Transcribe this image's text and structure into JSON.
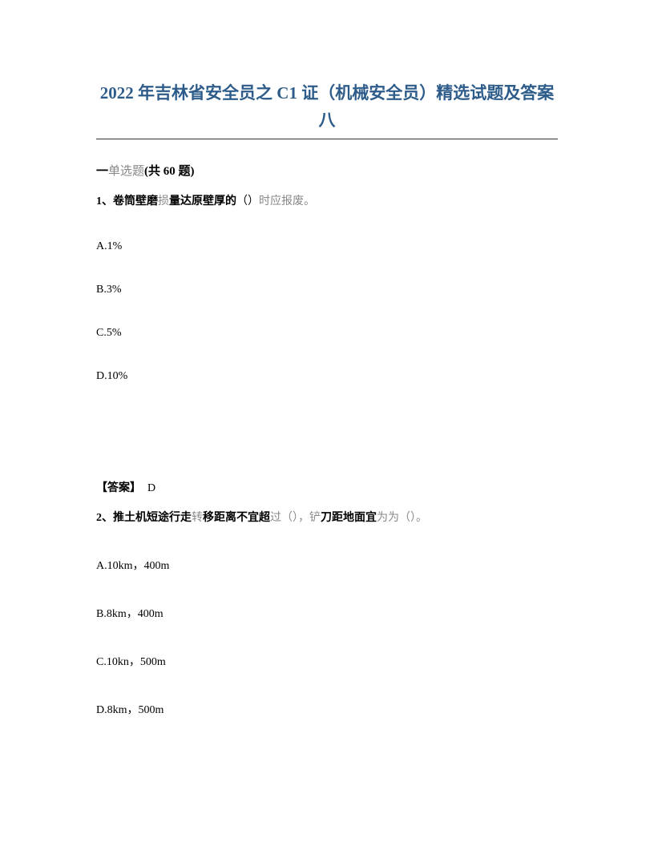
{
  "title": "2022 年吉林省安全员之 C1 证（机械安全员）精选试题及答案八",
  "section": {
    "prefix": "一",
    "label": "单选题",
    "count": "(共 60 题)"
  },
  "q1": {
    "number": "1、",
    "part1": "卷筒壁磨",
    "gray1": "损",
    "part2": "量达原壁厚的",
    "paren": "（）",
    "gray2": "时应报废。",
    "optA": "A.1%",
    "optB": "B.3%",
    "optC": "C.5%",
    "optD": "D.10%",
    "answerLabel": "【答案】",
    "answerValue": "D"
  },
  "q2": {
    "number": "2、",
    "part1": "推土机短途行走",
    "gray1": "转",
    "part2": "移距离不宜超",
    "gray2": "过（），铲",
    "part3": "刀距地面宜",
    "gray3": "为为（）。",
    "optA": "A.10km，400m",
    "optB": "B.8km，400m",
    "optC": "C.10kn，500m",
    "optD": "D.8km，500m"
  }
}
